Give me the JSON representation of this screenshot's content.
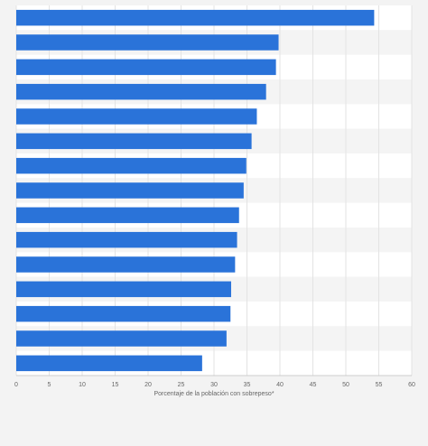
{
  "chart_data": {
    "type": "bar",
    "orientation": "horizontal",
    "categories": [
      "",
      "",
      "",
      "",
      "",
      "",
      "",
      "",
      "",
      "",
      "",
      "",
      "",
      "",
      ""
    ],
    "values": [
      54.3,
      39.8,
      39.4,
      37.9,
      36.5,
      35.7,
      34.9,
      34.5,
      33.8,
      33.5,
      33.2,
      32.6,
      32.5,
      31.9,
      28.2
    ],
    "xlabel": "Porcentaje de la población con sobrepeso*",
    "ylabel": "",
    "xlim": [
      0,
      60
    ],
    "xticks": [
      0,
      5,
      10,
      15,
      20,
      25,
      30,
      35,
      40,
      45,
      50,
      55,
      60
    ],
    "grid": true,
    "legend": "none",
    "colors": {
      "bar": "#2a73d9",
      "plot_band_light": "#ffffff",
      "plot_band_dark": "#f4f4f4",
      "gridline": "#e3e3e3",
      "axis": "#cccccc",
      "page_background": "#f3f3f3"
    }
  }
}
